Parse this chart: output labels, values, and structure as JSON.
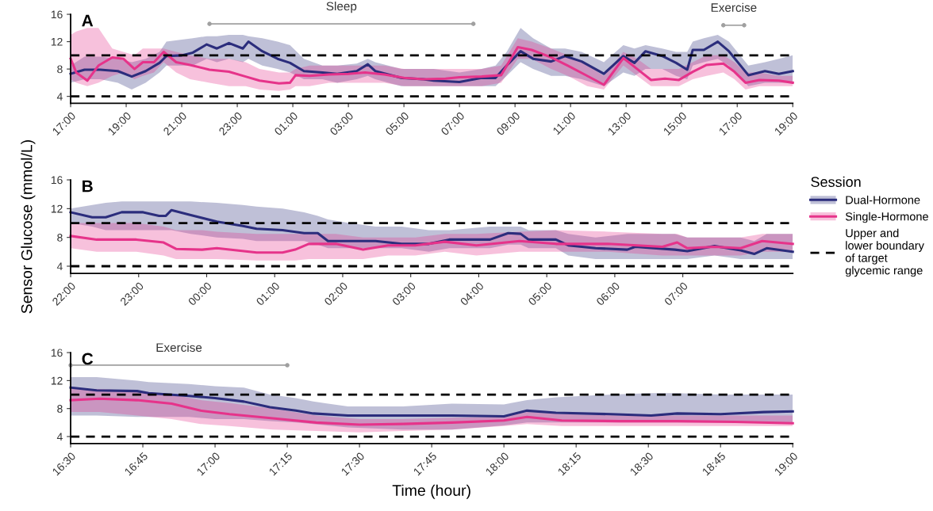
{
  "chart_data": [
    {
      "type": "line",
      "title": "A",
      "ylim": [
        3,
        16
      ],
      "yticks": [
        4,
        8,
        12,
        16
      ],
      "xlim": [
        "2000-01-01T17:00",
        "2000-01-02T19:00"
      ],
      "xticks": [
        {
          "value": "2000-01-01T17:00",
          "label": "17:00"
        },
        {
          "value": "2000-01-01T19:00",
          "label": "19:00"
        },
        {
          "value": "2000-01-01T21:00",
          "label": "21:00"
        },
        {
          "value": "2000-01-01T23:00",
          "label": "23:00"
        },
        {
          "value": "2000-01-02T01:00",
          "label": "01:00"
        },
        {
          "value": "2000-01-02T03:00",
          "label": "03:00"
        },
        {
          "value": "2000-01-02T05:00",
          "label": "05:00"
        },
        {
          "value": "2000-01-02T07:00",
          "label": "07:00"
        },
        {
          "value": "2000-01-02T09:00",
          "label": "09:00"
        },
        {
          "value": "2000-01-02T11:00",
          "label": "11:00"
        },
        {
          "value": "2000-01-02T13:00",
          "label": "13:00"
        },
        {
          "value": "2000-01-02T15:00",
          "label": "15:00"
        },
        {
          "value": "2000-01-02T17:00",
          "label": "17:00"
        },
        {
          "value": "2000-01-02T19:00",
          "label": "19:00"
        }
      ],
      "grid": false,
      "legend": false,
      "marker": "none",
      "line_style": "solid",
      "series": [
        {
          "color": "#2b2d7c",
          "x": [
            "2000-01-01T17:00",
            "2000-01-01T17:30",
            "2000-01-01T18:04",
            "2000-01-01T18:42",
            "2000-01-01T19:12",
            "2000-01-01T19:42",
            "2000-01-01T20:12",
            "2000-01-01T20:27",
            "2000-01-01T21:00",
            "2000-01-01T21:24",
            "2000-01-01T21:54",
            "2000-01-01T22:16",
            "2000-01-01T22:42",
            "2000-01-01T23:12",
            "2000-01-01T23:24",
            "2000-01-01T23:54",
            "2000-01-02T00:27",
            "2000-01-02T00:54",
            "2000-01-02T01:24",
            "2000-01-02T02:04",
            "2000-01-02T02:36",
            "2000-01-02T03:18",
            "2000-01-02T03:42",
            "2000-01-02T03:58",
            "2000-01-02T04:54",
            "2000-01-02T05:42",
            "2000-01-02T06:04",
            "2000-01-02T07:00",
            "2000-01-02T07:48",
            "2000-01-02T08:18",
            "2000-01-02T08:42",
            "2000-01-02T09:12",
            "2000-01-02T09:39",
            "2000-01-02T10:18",
            "2000-01-02T10:48",
            "2000-01-02T11:24",
            "2000-01-02T12:12",
            "2000-01-02T12:54",
            "2000-01-02T13:18",
            "2000-01-02T13:42",
            "2000-01-02T14:18",
            "2000-01-02T14:48",
            "2000-01-02T15:12",
            "2000-01-02T15:24",
            "2000-01-02T15:48",
            "2000-01-02T16:18",
            "2000-01-02T16:42",
            "2000-01-02T17:24",
            "2000-01-02T18:00",
            "2000-01-02T18:30",
            "2000-01-02T19:00"
          ],
          "values": [
            7.3,
            7.9,
            7.9,
            7.7,
            6.9,
            7.7,
            8.9,
            9.9,
            10.0,
            10.4,
            11.6,
            11.0,
            11.8,
            11.0,
            12.0,
            10.6,
            9.5,
            8.9,
            7.7,
            7.5,
            7.3,
            7.7,
            8.7,
            7.7,
            6.7,
            6.5,
            6.3,
            6.1,
            6.7,
            6.7,
            8.5,
            10.6,
            9.5,
            9.1,
            9.9,
            9.1,
            7.3,
            9.9,
            8.9,
            10.6,
            9.9,
            8.9,
            7.9,
            10.8,
            10.8,
            12.0,
            10.6,
            7.1,
            7.7,
            7.3,
            7.7
          ],
          "upper": [
            8.5,
            9.8,
            9.8,
            9.5,
            9.0,
            9.5,
            10.5,
            12.0,
            12.3,
            12.5,
            12.8,
            12.8,
            13.0,
            13.0,
            12.8,
            12.5,
            12.0,
            11.5,
            9.5,
            8.5,
            8.5,
            8.8,
            9.5,
            9.0,
            8.0,
            8.0,
            8.0,
            7.5,
            8.0,
            8.5,
            10.5,
            14.0,
            12.5,
            11.0,
            11.0,
            10.5,
            9.0,
            11.5,
            11.0,
            11.5,
            11.0,
            10.5,
            10.5,
            12.0,
            12.5,
            13.0,
            12.0,
            8.5,
            9.0,
            9.5,
            10.0
          ],
          "lower": [
            6.0,
            6.5,
            6.5,
            6.0,
            5.0,
            6.0,
            7.5,
            8.5,
            8.5,
            8.5,
            9.5,
            9.0,
            9.5,
            9.0,
            9.5,
            8.5,
            8.0,
            7.5,
            6.5,
            6.5,
            6.0,
            6.5,
            7.0,
            6.5,
            5.5,
            5.5,
            5.5,
            5.5,
            5.5,
            5.5,
            7.0,
            9.0,
            8.0,
            7.0,
            7.0,
            6.5,
            5.5,
            7.5,
            7.0,
            8.0,
            8.0,
            7.0,
            6.5,
            8.5,
            9.0,
            9.5,
            8.5,
            5.5,
            6.0,
            6.0,
            6.0
          ]
        },
        {
          "color": "#e6338a",
          "x": [
            "2000-01-01T17:00",
            "2000-01-01T17:12",
            "2000-01-01T17:36",
            "2000-01-01T18:00",
            "2000-01-01T18:30",
            "2000-01-01T18:54",
            "2000-01-01T19:18",
            "2000-01-01T19:36",
            "2000-01-01T20:00",
            "2000-01-01T20:21",
            "2000-01-01T20:48",
            "2000-01-01T21:18",
            "2000-01-01T22:00",
            "2000-01-01T22:42",
            "2000-01-01T23:18",
            "2000-01-01T23:48",
            "2000-01-02T00:30",
            "2000-01-02T00:54",
            "2000-01-02T01:06",
            "2000-01-02T01:36",
            "2000-01-02T02:18",
            "2000-01-02T03:00",
            "2000-01-02T03:36",
            "2000-01-02T04:18",
            "2000-01-02T05:00",
            "2000-01-02T05:42",
            "2000-01-02T06:30",
            "2000-01-02T07:00",
            "2000-01-02T07:48",
            "2000-01-02T08:30",
            "2000-01-02T09:06",
            "2000-01-02T09:36",
            "2000-01-02T10:18",
            "2000-01-02T10:54",
            "2000-01-02T11:36",
            "2000-01-02T12:12",
            "2000-01-02T12:54",
            "2000-01-02T13:24",
            "2000-01-02T13:54",
            "2000-01-02T14:24",
            "2000-01-02T14:54",
            "2000-01-02T15:24",
            "2000-01-02T15:54",
            "2000-01-02T16:30",
            "2000-01-02T16:54",
            "2000-01-02T17:18",
            "2000-01-02T17:48",
            "2000-01-02T18:30",
            "2000-01-02T19:00"
          ],
          "values": [
            9.5,
            7.5,
            6.3,
            8.5,
            9.7,
            9.5,
            8.0,
            9.0,
            9.0,
            10.5,
            9.0,
            8.6,
            7.9,
            7.6,
            6.9,
            6.3,
            5.9,
            6.0,
            7.1,
            7.0,
            7.2,
            7.3,
            7.5,
            7.2,
            6.7,
            6.5,
            6.6,
            6.8,
            6.9,
            7.1,
            11.2,
            10.8,
            9.7,
            8.5,
            7.0,
            5.7,
            9.6,
            8.0,
            6.4,
            6.6,
            6.4,
            7.6,
            8.6,
            8.8,
            7.6,
            6.0,
            6.4,
            6.3,
            6.0
          ],
          "upper": [
            13.0,
            13.5,
            14.0,
            14.0,
            11.0,
            10.5,
            10.0,
            11.0,
            11.0,
            11.0,
            10.5,
            10.0,
            9.5,
            9.5,
            9.0,
            8.0,
            7.5,
            7.5,
            8.0,
            8.5,
            8.5,
            8.5,
            8.5,
            8.5,
            8.0,
            8.0,
            8.0,
            8.0,
            8.0,
            8.5,
            12.5,
            12.0,
            11.0,
            10.0,
            8.5,
            7.0,
            10.5,
            9.5,
            8.0,
            8.0,
            8.0,
            9.0,
            10.0,
            10.0,
            9.0,
            7.5,
            7.5,
            7.0,
            7.0
          ],
          "lower": [
            6.5,
            6.0,
            5.5,
            6.0,
            7.0,
            7.5,
            6.5,
            7.0,
            7.5,
            9.0,
            7.5,
            6.5,
            6.0,
            5.5,
            5.5,
            5.0,
            4.8,
            5.0,
            5.5,
            5.5,
            6.0,
            6.0,
            6.0,
            6.0,
            5.5,
            5.5,
            5.5,
            5.5,
            5.5,
            6.0,
            9.5,
            9.5,
            8.0,
            7.0,
            5.5,
            5.0,
            8.5,
            7.0,
            5.5,
            5.5,
            5.5,
            6.5,
            7.0,
            7.5,
            6.5,
            5.0,
            5.5,
            5.5,
            5.5
          ]
        },
        {
          "name": "Sleep",
          "color": "#a0a0a0",
          "marker": "circle",
          "x": [
            "2000-01-01T22:00",
            "2000-01-02T07:30"
          ],
          "values": [
            14.6,
            14.6
          ]
        },
        {
          "name": "Exercise",
          "color": "#a0a0a0",
          "marker": "circle",
          "x": [
            "2000-01-02T16:30",
            "2000-01-02T17:15"
          ],
          "values": [
            14.4,
            14.4
          ]
        }
      ],
      "ref_lines": [
        {
          "axis": "y",
          "value": 10,
          "color": "#000000",
          "line_style": "dashed"
        },
        {
          "axis": "y",
          "value": 4,
          "color": "#000000",
          "line_style": "dashed"
        }
      ]
    },
    {
      "type": "line",
      "title": "B",
      "ylabel": "Sensor Glucose (mmol/L)",
      "legend_title": "Session",
      "ylim": [
        3,
        16
      ],
      "yticks": [
        4,
        8,
        12,
        16
      ],
      "xlim": [
        "2000-01-01T22:00",
        "2000-01-02T08:37"
      ],
      "xticks": [
        {
          "value": "2000-01-01T22:00",
          "label": "22:00"
        },
        {
          "value": "2000-01-01T23:00",
          "label": "23:00"
        },
        {
          "value": "2000-01-02T00:00",
          "label": "00:00"
        },
        {
          "value": "2000-01-02T01:00",
          "label": "01:00"
        },
        {
          "value": "2000-01-02T02:00",
          "label": "02:00"
        },
        {
          "value": "2000-01-02T03:00",
          "label": "03:00"
        },
        {
          "value": "2000-01-02T04:00",
          "label": "04:00"
        },
        {
          "value": "2000-01-02T05:00",
          "label": "05:00"
        },
        {
          "value": "2000-01-02T06:00",
          "label": "06:00"
        },
        {
          "value": "2000-01-02T07:00",
          "label": "07:00"
        }
      ],
      "grid": false,
      "legend": "right",
      "marker": "none",
      "line_style": "solid",
      "series": [
        {
          "name": "Dual-Hormone",
          "color": "#2b2d7c",
          "x": [
            "2000-01-01T22:00",
            "2000-01-01T22:19",
            "2000-01-01T22:31",
            "2000-01-01T22:45",
            "2000-01-01T23:04",
            "2000-01-01T23:18",
            "2000-01-01T23:24",
            "2000-01-01T23:29",
            "2000-01-01T23:46",
            "2000-01-02T00:09",
            "2000-01-02T00:32",
            "2000-01-02T00:44",
            "2000-01-02T01:07",
            "2000-01-02T01:26",
            "2000-01-02T01:38",
            "2000-01-02T01:47",
            "2000-01-02T02:06",
            "2000-01-02T02:29",
            "2000-01-02T02:52",
            "2000-01-02T03:16",
            "2000-01-02T03:34",
            "2000-01-02T04:10",
            "2000-01-02T04:26",
            "2000-01-02T04:37",
            "2000-01-02T04:44",
            "2000-01-02T05:08",
            "2000-01-02T05:19",
            "2000-01-02T05:43",
            "2000-01-02T06:11",
            "2000-01-02T06:18",
            "2000-01-02T06:53",
            "2000-01-02T07:04",
            "2000-01-02T07:28",
            "2000-01-02T07:51",
            "2000-01-02T08:03",
            "2000-01-02T08:14",
            "2000-01-02T08:37"
          ],
          "values": [
            11.5,
            10.8,
            10.8,
            11.5,
            11.5,
            11.0,
            11.0,
            11.8,
            11.1,
            10.2,
            9.6,
            9.2,
            9.0,
            8.6,
            8.6,
            7.5,
            7.5,
            7.5,
            7.1,
            7.1,
            7.7,
            7.7,
            8.6,
            8.5,
            7.7,
            7.7,
            6.9,
            6.5,
            6.3,
            6.7,
            6.3,
            6.1,
            6.8,
            6.2,
            5.7,
            6.5,
            6.0
          ],
          "upper": [
            12.0,
            12.5,
            12.8,
            13.0,
            13.0,
            13.0,
            13.0,
            13.0,
            13.0,
            12.8,
            12.5,
            12.3,
            12.0,
            11.5,
            11.0,
            10.5,
            10.0,
            9.5,
            9.5,
            9.0,
            9.0,
            9.5,
            9.5,
            9.5,
            9.0,
            9.0,
            8.5,
            8.0,
            8.5,
            8.5,
            8.5,
            8.0,
            8.0,
            8.0,
            7.5,
            8.5,
            8.5
          ],
          "lower": [
            10.0,
            9.5,
            9.0,
            9.0,
            9.0,
            9.0,
            9.0,
            9.0,
            8.5,
            8.0,
            7.8,
            7.5,
            7.5,
            7.5,
            7.0,
            6.5,
            6.5,
            6.5,
            6.5,
            6.0,
            6.5,
            6.5,
            7.0,
            7.0,
            6.5,
            6.5,
            5.5,
            5.0,
            5.0,
            5.0,
            5.0,
            5.0,
            5.5,
            5.0,
            5.0,
            5.0,
            5.0
          ]
        },
        {
          "name": "Single-Hormone",
          "color": "#e6338a",
          "x": [
            "2000-01-01T22:00",
            "2000-01-01T22:23",
            "2000-01-01T22:58",
            "2000-01-01T23:22",
            "2000-01-01T23:33",
            "2000-01-01T23:56",
            "2000-01-02T00:09",
            "2000-01-02T00:44",
            "2000-01-02T01:07",
            "2000-01-02T01:18",
            "2000-01-02T01:30",
            "2000-01-02T01:54",
            "2000-01-02T02:18",
            "2000-01-02T02:40",
            "2000-01-02T03:04",
            "2000-01-02T03:30",
            "2000-01-02T03:58",
            "2000-01-02T04:36",
            "2000-01-02T05:08",
            "2000-01-02T05:54",
            "2000-01-02T06:42",
            "2000-01-02T06:55",
            "2000-01-02T07:04",
            "2000-01-02T07:28",
            "2000-01-02T07:51",
            "2000-01-02T08:10",
            "2000-01-02T08:37"
          ],
          "values": [
            8.2,
            7.7,
            7.7,
            7.3,
            6.4,
            6.3,
            6.5,
            5.9,
            5.9,
            6.3,
            7.1,
            7.1,
            6.3,
            6.9,
            6.9,
            7.4,
            6.9,
            7.5,
            7.1,
            7.1,
            6.7,
            7.3,
            6.5,
            6.7,
            6.5,
            7.5,
            7.1
          ],
          "upper": [
            10.0,
            10.0,
            10.0,
            9.5,
            9.0,
            9.0,
            8.8,
            8.5,
            8.5,
            8.5,
            8.5,
            8.5,
            8.0,
            8.0,
            8.0,
            8.5,
            8.5,
            8.8,
            9.0,
            8.8,
            8.5,
            8.5,
            8.0,
            8.0,
            8.0,
            8.5,
            8.5
          ],
          "lower": [
            6.5,
            6.0,
            6.0,
            5.5,
            5.0,
            5.0,
            5.0,
            4.8,
            4.8,
            4.8,
            5.0,
            5.0,
            5.0,
            5.5,
            5.5,
            6.0,
            5.5,
            6.0,
            6.0,
            6.0,
            5.5,
            5.5,
            5.5,
            5.5,
            5.5,
            6.0,
            6.0
          ]
        }
      ],
      "ref_lines": [
        {
          "axis": "y",
          "value": 10,
          "color": "#000000",
          "line_style": "dashed",
          "label": "Upper and\nlower boundary\nof target\nglycemic range"
        },
        {
          "axis": "y",
          "value": 4,
          "color": "#000000",
          "line_style": "dashed"
        }
      ]
    },
    {
      "type": "line",
      "title": "C",
      "xlabel": "Time (hour)",
      "ylim": [
        3,
        16
      ],
      "yticks": [
        4,
        8,
        12,
        16
      ],
      "xlim": [
        16.5,
        19
      ],
      "xticks": [
        {
          "value": 16.5,
          "label": "16:30"
        },
        {
          "value": 16.75,
          "label": "16:45"
        },
        {
          "value": 17,
          "label": "17:00"
        },
        {
          "value": 17.25,
          "label": "17:15"
        },
        {
          "value": 17.5,
          "label": "17:30"
        },
        {
          "value": 17.75,
          "label": "17:45"
        },
        {
          "value": 18,
          "label": "18:00"
        },
        {
          "value": 18.25,
          "label": "18:15"
        },
        {
          "value": 18.5,
          "label": "18:30"
        },
        {
          "value": 18.75,
          "label": "18:45"
        },
        {
          "value": 19,
          "label": "19:00"
        }
      ],
      "grid": false,
      "legend": false,
      "marker": "none",
      "line_style": "solid",
      "series": [
        {
          "color": "#2b2d7c",
          "x": [
            16.5,
            16.59,
            16.73,
            16.77,
            16.91,
            17.0,
            17.1,
            17.19,
            17.28,
            17.34,
            17.46,
            17.65,
            17.82,
            18.0,
            18.08,
            18.18,
            18.37,
            18.51,
            18.6,
            18.75,
            18.9,
            19.0
          ],
          "values": [
            11.0,
            10.6,
            10.5,
            10.2,
            9.8,
            9.5,
            9.0,
            8.2,
            7.7,
            7.3,
            7.0,
            7.0,
            7.0,
            6.9,
            7.7,
            7.4,
            7.2,
            7.0,
            7.3,
            7.2,
            7.5,
            7.6
          ],
          "upper": [
            12.5,
            12.5,
            12.0,
            11.8,
            11.5,
            11.2,
            11.0,
            10.0,
            9.5,
            9.0,
            8.3,
            8.3,
            8.7,
            8.6,
            9.2,
            9.6,
            10.0,
            10.2,
            10.2,
            10.0,
            10.0,
            10.0
          ],
          "lower": [
            7.0,
            7.0,
            6.8,
            6.8,
            6.8,
            6.5,
            6.5,
            6.2,
            6.0,
            5.8,
            5.3,
            5.0,
            5.0,
            5.6,
            6.0,
            6.0,
            6.0,
            6.0,
            6.0,
            6.0,
            6.0,
            6.0
          ]
        },
        {
          "color": "#e6338a",
          "x": [
            16.5,
            16.6,
            16.73,
            16.85,
            16.95,
            17.05,
            17.2,
            17.35,
            17.5,
            17.65,
            17.82,
            18.0,
            18.08,
            18.2,
            18.4,
            18.6,
            18.8,
            19.0
          ],
          "values": [
            9.2,
            9.4,
            9.2,
            8.7,
            7.7,
            7.2,
            6.6,
            6.0,
            5.7,
            5.8,
            6.0,
            6.3,
            6.8,
            6.3,
            6.2,
            6.2,
            6.1,
            5.9
          ],
          "upper": [
            10.8,
            10.8,
            10.5,
            10.0,
            9.2,
            8.8,
            8.0,
            7.0,
            6.5,
            6.5,
            6.7,
            6.8,
            7.5,
            7.2,
            7.0,
            7.0,
            7.0,
            7.0
          ],
          "lower": [
            7.5,
            7.5,
            7.0,
            6.5,
            5.8,
            5.5,
            5.0,
            4.8,
            4.6,
            4.8,
            5.0,
            5.5,
            5.8,
            5.5,
            5.5,
            5.5,
            5.5,
            5.5
          ]
        },
        {
          "name": "Exercise",
          "color": "#a0a0a0",
          "marker": "circle",
          "x": [
            16.5,
            17.25
          ],
          "values": [
            14.2,
            14.2
          ]
        }
      ],
      "ref_lines": [
        {
          "axis": "y",
          "value": 10,
          "color": "#000000",
          "line_style": "dashed"
        },
        {
          "axis": "y",
          "value": 4,
          "color": "#000000",
          "line_style": "dashed"
        }
      ]
    }
  ]
}
